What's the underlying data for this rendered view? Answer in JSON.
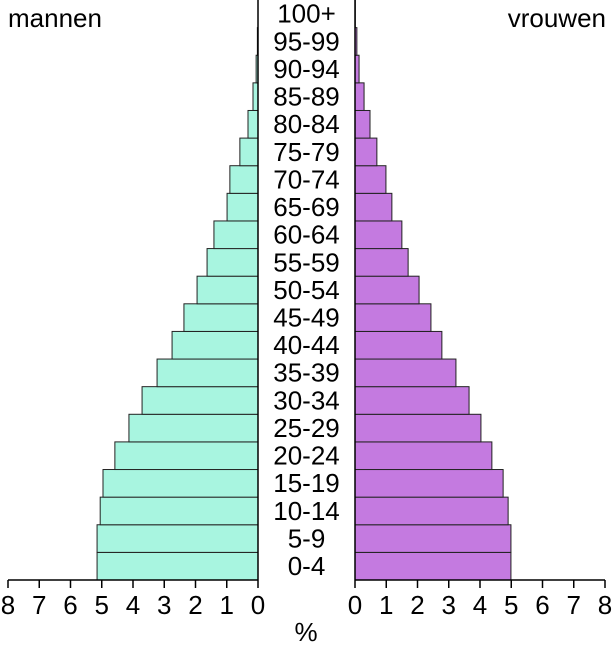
{
  "chart_data": {
    "type": "pyramid",
    "categories": [
      "0-4",
      "5-9",
      "10-14",
      "15-19",
      "20-24",
      "25-29",
      "30-34",
      "35-39",
      "40-44",
      "45-49",
      "50-54",
      "55-59",
      "60-64",
      "65-69",
      "70-74",
      "75-79",
      "80-84",
      "85-89",
      "90-94",
      "95-99",
      "100+"
    ],
    "series": [
      {
        "name": "mannen",
        "color": "#a8f5e0",
        "values": [
          5.15,
          5.15,
          5.05,
          4.96,
          4.58,
          4.13,
          3.71,
          3.23,
          2.75,
          2.37,
          1.95,
          1.63,
          1.41,
          0.99,
          0.9,
          0.58,
          0.32,
          0.16,
          0.06,
          0.02,
          0
        ]
      },
      {
        "name": "vrouwen",
        "color": "#c47ae0",
        "values": [
          4.99,
          4.99,
          4.9,
          4.74,
          4.38,
          4.03,
          3.65,
          3.23,
          2.78,
          2.43,
          2.05,
          1.7,
          1.5,
          1.18,
          0.99,
          0.7,
          0.48,
          0.29,
          0.13,
          0.06,
          0.01
        ]
      }
    ],
    "xlabel": "%",
    "xlim": [
      0,
      8
    ],
    "xticks": [
      0,
      1,
      2,
      3,
      4,
      5,
      6,
      7,
      8
    ]
  }
}
